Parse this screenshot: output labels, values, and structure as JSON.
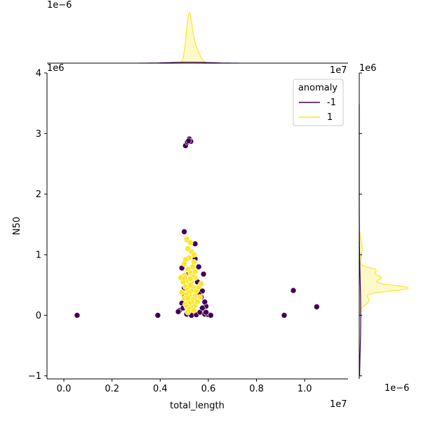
{
  "chart_data": {
    "type": "scatter",
    "title": "",
    "xlabel": "total_length",
    "ylabel": "N50",
    "x_offset_text": "1e7",
    "y_offset_text": "1e6",
    "top_marginal_offset_text": "1e−6",
    "right_marginal_offset_text": "1e−6",
    "corner_labels": {
      "top_right": "1e7",
      "right_marginal_top": "1e6"
    },
    "xlim": [
      -0.07,
      1.18
    ],
    "ylim": [
      -1.05,
      4.0
    ],
    "xticks": [
      {
        "value": 0.0,
        "label": "0.0"
      },
      {
        "value": 0.2,
        "label": "0.2"
      },
      {
        "value": 0.4,
        "label": "0.4"
      },
      {
        "value": 0.6,
        "label": "0.6"
      },
      {
        "value": 0.8,
        "label": "0.8"
      },
      {
        "value": 1.0,
        "label": "1.0"
      }
    ],
    "yticks": [
      {
        "value": -1,
        "label": "−1"
      },
      {
        "value": 0,
        "label": "0"
      },
      {
        "value": 1,
        "label": "1"
      },
      {
        "value": 2,
        "label": "2"
      },
      {
        "value": 3,
        "label": "3"
      },
      {
        "value": 4,
        "label": "4"
      }
    ],
    "legend": {
      "title": "anomaly",
      "placement": "top-right",
      "entries": [
        {
          "label": "-1",
          "color": "#440154"
        },
        {
          "label": "1",
          "color": "#fde725"
        }
      ]
    },
    "grid": false,
    "series": [
      {
        "name": "-1",
        "color": "#440154",
        "points": [
          [
            0.055,
            0.0
          ],
          [
            0.39,
            0.0
          ],
          [
            0.915,
            0.0
          ],
          [
            0.953,
            0.41
          ],
          [
            1.05,
            0.14
          ],
          [
            0.505,
            2.8
          ],
          [
            0.513,
            2.86
          ],
          [
            0.521,
            2.91
          ],
          [
            0.527,
            2.87
          ],
          [
            0.518,
            2.88
          ],
          [
            0.5,
            1.38
          ],
          [
            0.545,
            1.18
          ],
          [
            0.51,
            1.25
          ],
          [
            0.56,
            0.8
          ],
          [
            0.58,
            0.68
          ],
          [
            0.49,
            0.78
          ],
          [
            0.52,
            0.7
          ],
          [
            0.545,
            0.93
          ],
          [
            0.48,
            0.08
          ],
          [
            0.475,
            0.06
          ],
          [
            0.51,
            0.02
          ],
          [
            0.53,
            0.0
          ],
          [
            0.55,
            0.01
          ],
          [
            0.565,
            0.05
          ],
          [
            0.585,
            0.02
          ],
          [
            0.6,
            0.01
          ],
          [
            0.61,
            0.0
          ],
          [
            0.59,
            0.15
          ],
          [
            0.585,
            0.22
          ],
          [
            0.575,
            0.4
          ],
          [
            0.5,
            0.45
          ],
          [
            0.505,
            0.6
          ],
          [
            0.57,
            0.3
          ],
          [
            0.49,
            0.2
          ],
          [
            0.54,
            0.25
          ],
          [
            0.56,
            0.35
          ],
          [
            0.52,
            0.15
          ],
          [
            0.5,
            0.3
          ],
          [
            0.555,
            0.55
          ],
          [
            0.53,
            0.1
          ],
          [
            0.59,
            0.05
          ],
          [
            0.575,
            0.12
          ],
          [
            0.515,
            0.05
          ],
          [
            0.495,
            0.12
          ]
        ]
      },
      {
        "name": "1",
        "color": "#fde725",
        "points": [
          [
            0.51,
            1.26
          ],
          [
            0.525,
            1.2
          ],
          [
            0.515,
            1.1
          ],
          [
            0.53,
            1.05
          ],
          [
            0.52,
            0.95
          ],
          [
            0.505,
            0.92
          ],
          [
            0.54,
            0.88
          ],
          [
            0.535,
            0.8
          ],
          [
            0.515,
            0.76
          ],
          [
            0.525,
            0.7
          ],
          [
            0.5,
            0.66
          ],
          [
            0.545,
            0.62
          ],
          [
            0.51,
            0.58
          ],
          [
            0.53,
            0.55
          ],
          [
            0.52,
            0.5
          ],
          [
            0.505,
            0.47
          ],
          [
            0.54,
            0.45
          ],
          [
            0.515,
            0.42
          ],
          [
            0.53,
            0.4
          ],
          [
            0.52,
            0.37
          ],
          [
            0.51,
            0.34
          ],
          [
            0.545,
            0.32
          ],
          [
            0.525,
            0.3
          ],
          [
            0.5,
            0.28
          ],
          [
            0.535,
            0.26
          ],
          [
            0.515,
            0.24
          ],
          [
            0.53,
            0.22
          ],
          [
            0.52,
            0.2
          ],
          [
            0.505,
            0.18
          ],
          [
            0.545,
            0.16
          ],
          [
            0.51,
            0.14
          ],
          [
            0.53,
            0.12
          ],
          [
            0.52,
            0.1
          ],
          [
            0.54,
            0.08
          ],
          [
            0.515,
            0.06
          ],
          [
            0.525,
            0.5
          ],
          [
            0.535,
            0.64
          ],
          [
            0.495,
            0.55
          ],
          [
            0.55,
            0.4
          ],
          [
            0.56,
            0.47
          ],
          [
            0.565,
            0.3
          ],
          [
            0.555,
            0.22
          ],
          [
            0.57,
            0.52
          ],
          [
            0.49,
            0.38
          ],
          [
            0.485,
            0.62
          ],
          [
            0.545,
            0.72
          ],
          [
            0.5,
            0.85
          ],
          [
            0.54,
            1.0
          ],
          [
            0.525,
            0.6
          ],
          [
            0.515,
            0.28
          ]
        ]
      }
    ],
    "marginal_top_kde": {
      "series": [
        {
          "name": "-1",
          "color": "#440154",
          "peak_x": 0.52,
          "relative_peak": 0.02
        },
        {
          "name": "1",
          "color": "#fde725",
          "peak_x": 0.52,
          "relative_peak": 1.0
        }
      ]
    },
    "marginal_right_kde": {
      "series": [
        {
          "name": "-1",
          "color": "#440154",
          "peak_y": 0.0,
          "relative_peak": 0.03
        },
        {
          "name": "1",
          "color": "#fde725",
          "peak_y": 0.45,
          "relative_peak": 1.0
        }
      ]
    }
  }
}
